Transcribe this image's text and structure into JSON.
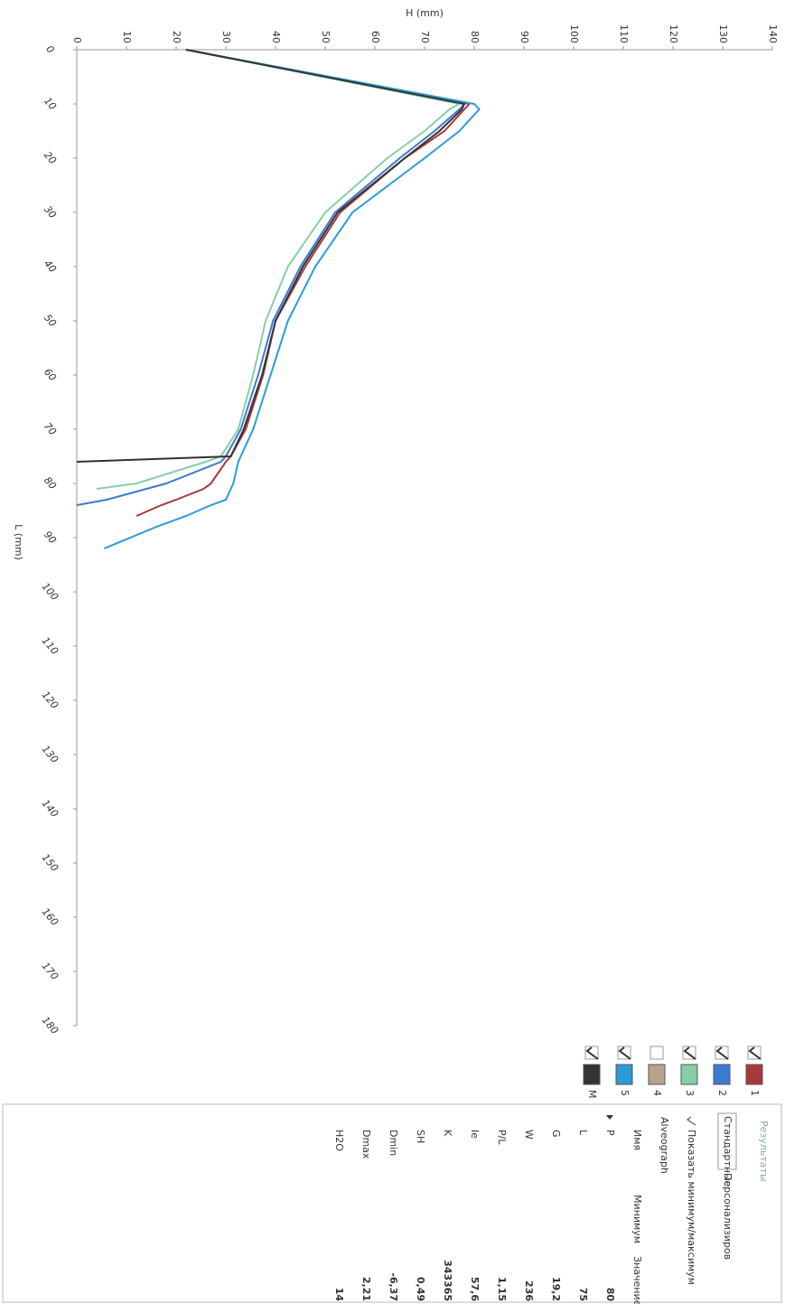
{
  "chart_data": {
    "type": "line",
    "x_label": "L (mm)",
    "y_label": "H (mm)",
    "x": [
      0,
      10,
      11,
      15,
      20,
      30,
      40,
      50,
      60,
      70,
      75,
      76,
      80,
      81,
      83,
      84,
      86,
      88,
      92
    ],
    "xlim": [
      0,
      180
    ],
    "xticks": [
      0,
      10,
      20,
      30,
      40,
      50,
      60,
      70,
      80,
      90,
      100,
      110,
      120,
      130,
      140,
      150,
      160,
      170,
      180
    ],
    "ylim": [
      0,
      140
    ],
    "yticks": [
      0,
      10,
      20,
      30,
      40,
      50,
      60,
      70,
      80,
      90,
      100,
      110,
      120,
      130,
      140
    ],
    "grid": false,
    "series": [
      {
        "name": "1",
        "color": "#a8383c",
        "checked": true,
        "values": [
          22,
          79,
          78,
          74,
          66,
          53,
          46,
          40,
          37.5,
          34,
          31,
          30,
          27,
          25.5,
          20,
          17,
          12,
          null,
          null
        ]
      },
      {
        "name": "2",
        "color": "#3c7ad4",
        "checked": true,
        "values": [
          22,
          78,
          77,
          72,
          65,
          52,
          45,
          39.5,
          36.5,
          33,
          30,
          29,
          18,
          14,
          6,
          0,
          null,
          null,
          null
        ]
      },
      {
        "name": "3",
        "color": "#86cfa6",
        "checked": true,
        "values": [
          22,
          77,
          75,
          70,
          62.5,
          50,
          42.5,
          38,
          35.5,
          32.5,
          29,
          26,
          12,
          4,
          null,
          null,
          null,
          null,
          null
        ]
      },
      {
        "name": "4",
        "color": "#b8a38c",
        "checked": false,
        "values": [
          null,
          null,
          null,
          null,
          null,
          null,
          null,
          null,
          null,
          null,
          null,
          null,
          null,
          null,
          null,
          null,
          null,
          null,
          null
        ]
      },
      {
        "name": "5",
        "color": "#2b9bd8",
        "checked": true,
        "values": [
          22,
          80,
          81,
          77,
          70,
          55.5,
          48,
          42.5,
          39,
          35.5,
          33,
          32.5,
          31.5,
          31,
          30,
          27,
          22,
          16,
          5.5
        ]
      },
      {
        "name": "M",
        "color": "#333333",
        "checked": true,
        "values": [
          22,
          78,
          77.5,
          73,
          66,
          52.5,
          45.5,
          40,
          37.3,
          33.6,
          31,
          0,
          null,
          null,
          null,
          null,
          null,
          null,
          null
        ]
      }
    ]
  },
  "panel": {
    "tab": "Результаты",
    "subtabs": [
      "Стандартные",
      "Персонализиров"
    ],
    "show_minmax": "Показать минимум/максимум",
    "group": "Alveograph",
    "columns": [
      "Имя",
      "Минимум",
      "Значение"
    ],
    "rows": [
      [
        "P",
        "80"
      ],
      [
        "L",
        "75"
      ],
      [
        "G",
        "19,2"
      ],
      [
        "W",
        "236"
      ],
      [
        "P/L",
        "1,15"
      ],
      [
        "Ie",
        "57,6"
      ],
      [
        "K",
        "343365"
      ],
      [
        "SH",
        "0,49"
      ],
      [
        "Dmin",
        "-6,37"
      ],
      [
        "Dmax",
        "2,21"
      ],
      [
        "H2O",
        "14"
      ]
    ]
  }
}
